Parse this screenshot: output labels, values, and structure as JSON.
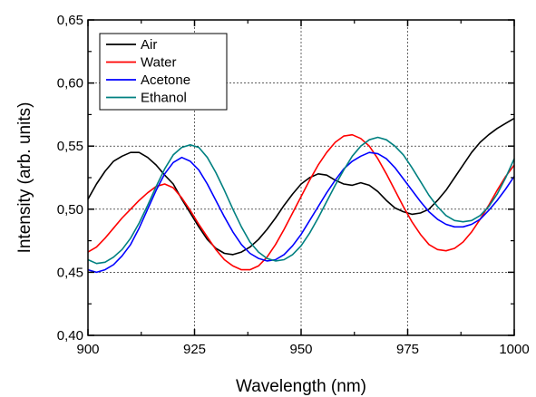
{
  "chart_data": {
    "type": "line",
    "title": "",
    "xlabel": "Wavelength (nm)",
    "ylabel": "Intensity (arb. units)",
    "xlim": [
      900,
      1000
    ],
    "ylim": [
      0.4,
      0.65
    ],
    "xticks": [
      900,
      925,
      950,
      975,
      1000
    ],
    "xtick_labels": [
      "900",
      "925",
      "950",
      "975",
      "1000"
    ],
    "yticks": [
      0.4,
      0.45,
      0.5,
      0.55,
      0.6,
      0.65
    ],
    "ytick_labels": [
      "0,40",
      "0,45",
      "0,50",
      "0,55",
      "0,60",
      "0,65"
    ],
    "grid": true,
    "legend_position": "top-left",
    "series": [
      {
        "name": "Air",
        "color": "#000000",
        "x": [
          900,
          902,
          904,
          906,
          908,
          910,
          912,
          914,
          916,
          918,
          920,
          922,
          924,
          926,
          928,
          930,
          932,
          934,
          936,
          938,
          940,
          942,
          944,
          946,
          948,
          950,
          952,
          954,
          956,
          958,
          960,
          962,
          964,
          966,
          968,
          970,
          972,
          974,
          976,
          978,
          980,
          982,
          984,
          986,
          988,
          990,
          992,
          994,
          996,
          998,
          1000
        ],
        "y": [
          0.508,
          0.52,
          0.53,
          0.538,
          0.542,
          0.545,
          0.545,
          0.541,
          0.535,
          0.527,
          0.52,
          0.508,
          0.497,
          0.486,
          0.476,
          0.469,
          0.465,
          0.464,
          0.466,
          0.47,
          0.476,
          0.484,
          0.493,
          0.503,
          0.512,
          0.52,
          0.525,
          0.528,
          0.527,
          0.523,
          0.52,
          0.519,
          0.521,
          0.519,
          0.514,
          0.507,
          0.501,
          0.498,
          0.496,
          0.497,
          0.5,
          0.507,
          0.515,
          0.525,
          0.535,
          0.545,
          0.553,
          0.559,
          0.564,
          0.568,
          0.572
        ]
      },
      {
        "name": "Water",
        "color": "#ff0000",
        "x": [
          900,
          902,
          904,
          906,
          908,
          910,
          912,
          914,
          916,
          918,
          920,
          922,
          924,
          926,
          928,
          930,
          932,
          934,
          936,
          938,
          940,
          942,
          944,
          946,
          948,
          950,
          952,
          954,
          956,
          958,
          960,
          962,
          964,
          966,
          968,
          970,
          972,
          974,
          976,
          978,
          980,
          982,
          984,
          986,
          988,
          990,
          992,
          994,
          996,
          998,
          1000
        ],
        "y": [
          0.466,
          0.47,
          0.477,
          0.485,
          0.493,
          0.5,
          0.507,
          0.513,
          0.518,
          0.52,
          0.517,
          0.509,
          0.499,
          0.488,
          0.478,
          0.468,
          0.46,
          0.455,
          0.452,
          0.452,
          0.455,
          0.462,
          0.472,
          0.484,
          0.497,
          0.51,
          0.523,
          0.535,
          0.545,
          0.553,
          0.558,
          0.559,
          0.556,
          0.55,
          0.54,
          0.528,
          0.515,
          0.502,
          0.49,
          0.48,
          0.472,
          0.468,
          0.467,
          0.469,
          0.474,
          0.482,
          0.492,
          0.503,
          0.515,
          0.526,
          0.535
        ]
      },
      {
        "name": "Acetone",
        "color": "#0000ff",
        "x": [
          900,
          902,
          904,
          906,
          908,
          910,
          912,
          914,
          916,
          918,
          920,
          922,
          924,
          926,
          928,
          930,
          932,
          934,
          936,
          938,
          940,
          942,
          944,
          946,
          948,
          950,
          952,
          954,
          956,
          958,
          960,
          962,
          964,
          966,
          968,
          970,
          972,
          974,
          976,
          978,
          980,
          982,
          984,
          986,
          988,
          990,
          992,
          994,
          996,
          998,
          1000
        ],
        "y": [
          0.452,
          0.45,
          0.452,
          0.456,
          0.463,
          0.472,
          0.485,
          0.5,
          0.515,
          0.528,
          0.537,
          0.541,
          0.538,
          0.531,
          0.52,
          0.507,
          0.494,
          0.482,
          0.472,
          0.465,
          0.461,
          0.459,
          0.46,
          0.464,
          0.471,
          0.48,
          0.491,
          0.502,
          0.513,
          0.523,
          0.532,
          0.538,
          0.542,
          0.545,
          0.544,
          0.54,
          0.533,
          0.524,
          0.515,
          0.506,
          0.498,
          0.492,
          0.488,
          0.486,
          0.486,
          0.488,
          0.492,
          0.499,
          0.507,
          0.516,
          0.526
        ]
      },
      {
        "name": "Ethanol",
        "color": "#008080",
        "x": [
          900,
          902,
          904,
          906,
          908,
          910,
          912,
          914,
          916,
          918,
          920,
          922,
          924,
          926,
          928,
          930,
          932,
          934,
          936,
          938,
          940,
          942,
          944,
          946,
          948,
          950,
          952,
          954,
          956,
          958,
          960,
          962,
          964,
          966,
          968,
          970,
          972,
          974,
          976,
          978,
          980,
          982,
          984,
          986,
          988,
          990,
          992,
          994,
          996,
          998,
          1000
        ],
        "y": [
          0.46,
          0.457,
          0.458,
          0.462,
          0.468,
          0.477,
          0.489,
          0.503,
          0.518,
          0.532,
          0.543,
          0.549,
          0.551,
          0.549,
          0.541,
          0.529,
          0.515,
          0.5,
          0.486,
          0.474,
          0.466,
          0.461,
          0.459,
          0.46,
          0.464,
          0.471,
          0.481,
          0.493,
          0.506,
          0.519,
          0.531,
          0.542,
          0.55,
          0.555,
          0.557,
          0.555,
          0.55,
          0.543,
          0.533,
          0.522,
          0.511,
          0.502,
          0.495,
          0.491,
          0.49,
          0.491,
          0.495,
          0.502,
          0.512,
          0.525,
          0.54
        ]
      }
    ]
  }
}
